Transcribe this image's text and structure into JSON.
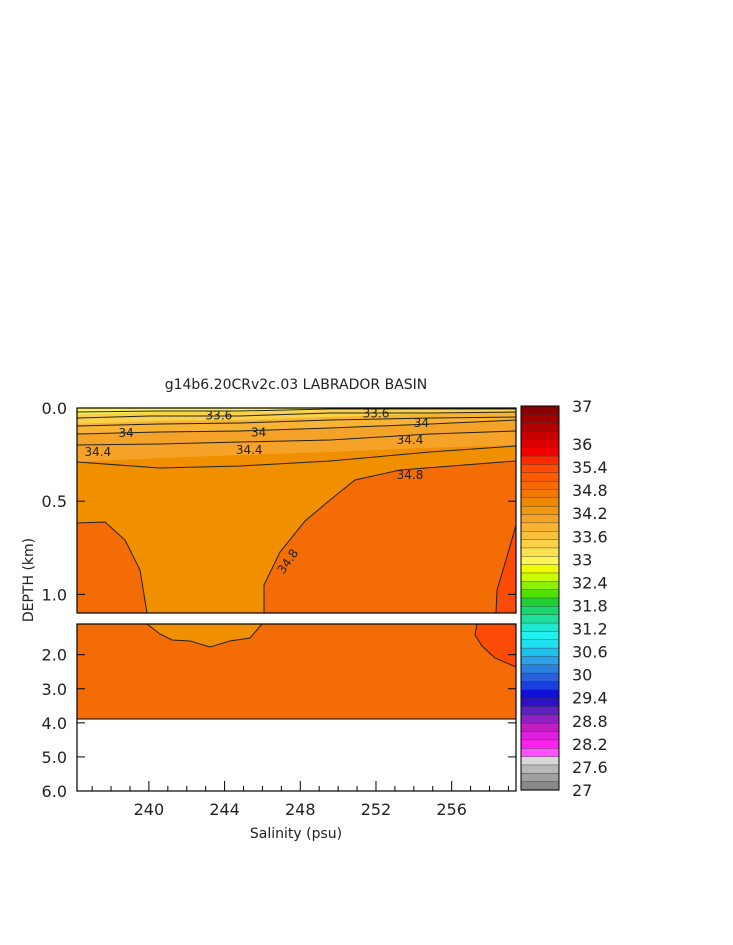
{
  "chart_data": {
    "type": "heatmap",
    "title": "g14b6.20CRv2c.03 LABRADOR BASIN",
    "xlabel": "Salinity (psu)",
    "ylabel": "DEPTH (km)",
    "x_ticks": [
      "240",
      "244",
      "248",
      "252",
      "256"
    ],
    "x_tick_values": [
      240,
      244,
      248,
      252,
      256
    ],
    "xlim": [
      236.2,
      259.4
    ],
    "upper_panel": {
      "ylim": [
        0.0,
        1.1
      ],
      "y_ticks": [
        "0.0",
        "0.5",
        "1.0"
      ],
      "y_tick_values": [
        0.0,
        0.5,
        1.0
      ]
    },
    "lower_panel": {
      "ylim": [
        1.1,
        6.0
      ],
      "y_ticks": [
        "2.0",
        "3.0",
        "4.0",
        "5.0",
        "6.0"
      ],
      "y_tick_values": [
        2.0,
        3.0,
        4.0,
        5.0,
        6.0
      ]
    },
    "data_bottom_depth": 3.9,
    "contour_labels": [
      {
        "text": "33.6",
        "x": 243.7,
        "depth": 0.035
      },
      {
        "text": "33.6",
        "x": 252.0,
        "depth": 0.025
      },
      {
        "text": "34",
        "x": 238.8,
        "depth": 0.13
      },
      {
        "text": "34",
        "x": 245.8,
        "depth": 0.125
      },
      {
        "text": "34",
        "x": 254.4,
        "depth": 0.075
      },
      {
        "text": "34.4",
        "x": 237.3,
        "depth": 0.23
      },
      {
        "text": "34.4",
        "x": 245.3,
        "depth": 0.22
      },
      {
        "text": "34.4",
        "x": 253.8,
        "depth": 0.165
      },
      {
        "text": "34.8",
        "x": 253.8,
        "depth": 0.355
      },
      {
        "text": "34.8",
        "x": 247.3,
        "depth": 0.82
      }
    ],
    "colorbar": {
      "labels": [
        "37",
        "36",
        "35.4",
        "34.8",
        "34.2",
        "33.6",
        "33",
        "32.4",
        "31.8",
        "31.2",
        "30.6",
        "30",
        "29.4",
        "28.8",
        "28.2",
        "27.6",
        "27"
      ],
      "label_values": [
        37,
        36,
        35.4,
        34.8,
        34.2,
        33.6,
        33,
        32.4,
        31.8,
        31.2,
        30.6,
        30,
        29.4,
        28.8,
        28.2,
        27.6,
        27
      ],
      "colors_top_to_bottom": [
        "#8b0000",
        "#a00000",
        "#b40000",
        "#c80000",
        "#dc0000",
        "#f00000",
        "#ff2a00",
        "#ff4a00",
        "#ff5a00",
        "#f86a00",
        "#f27800",
        "#ef8a00",
        "#f0980f",
        "#f5a328",
        "#f7b331",
        "#f8c23e",
        "#fad14a",
        "#fbe04f",
        "#fef554",
        "#f0fb00",
        "#c8fa00",
        "#8ef000",
        "#52e000",
        "#20d030",
        "#1ad870",
        "#20e0a0",
        "#20e8d0",
        "#20f0f0",
        "#20dfef",
        "#20c0ee",
        "#2aa0e8",
        "#2a80e0",
        "#2a60d8",
        "#1a40e0",
        "#1010d8",
        "#3010c8",
        "#6020c0",
        "#9020c0",
        "#c020c0",
        "#e020e0",
        "#ff20f0",
        "#ff50ff",
        "#d8d8d8",
        "#b8b8b8",
        "#a0a0a0",
        "#888888"
      ]
    },
    "colors": {
      "top_band": "#fef554",
      "mid_band": "#f5a328",
      "light_orange": "#f09000",
      "dark_orange": "#f46c05",
      "red_orange": "#fc4a07"
    }
  }
}
